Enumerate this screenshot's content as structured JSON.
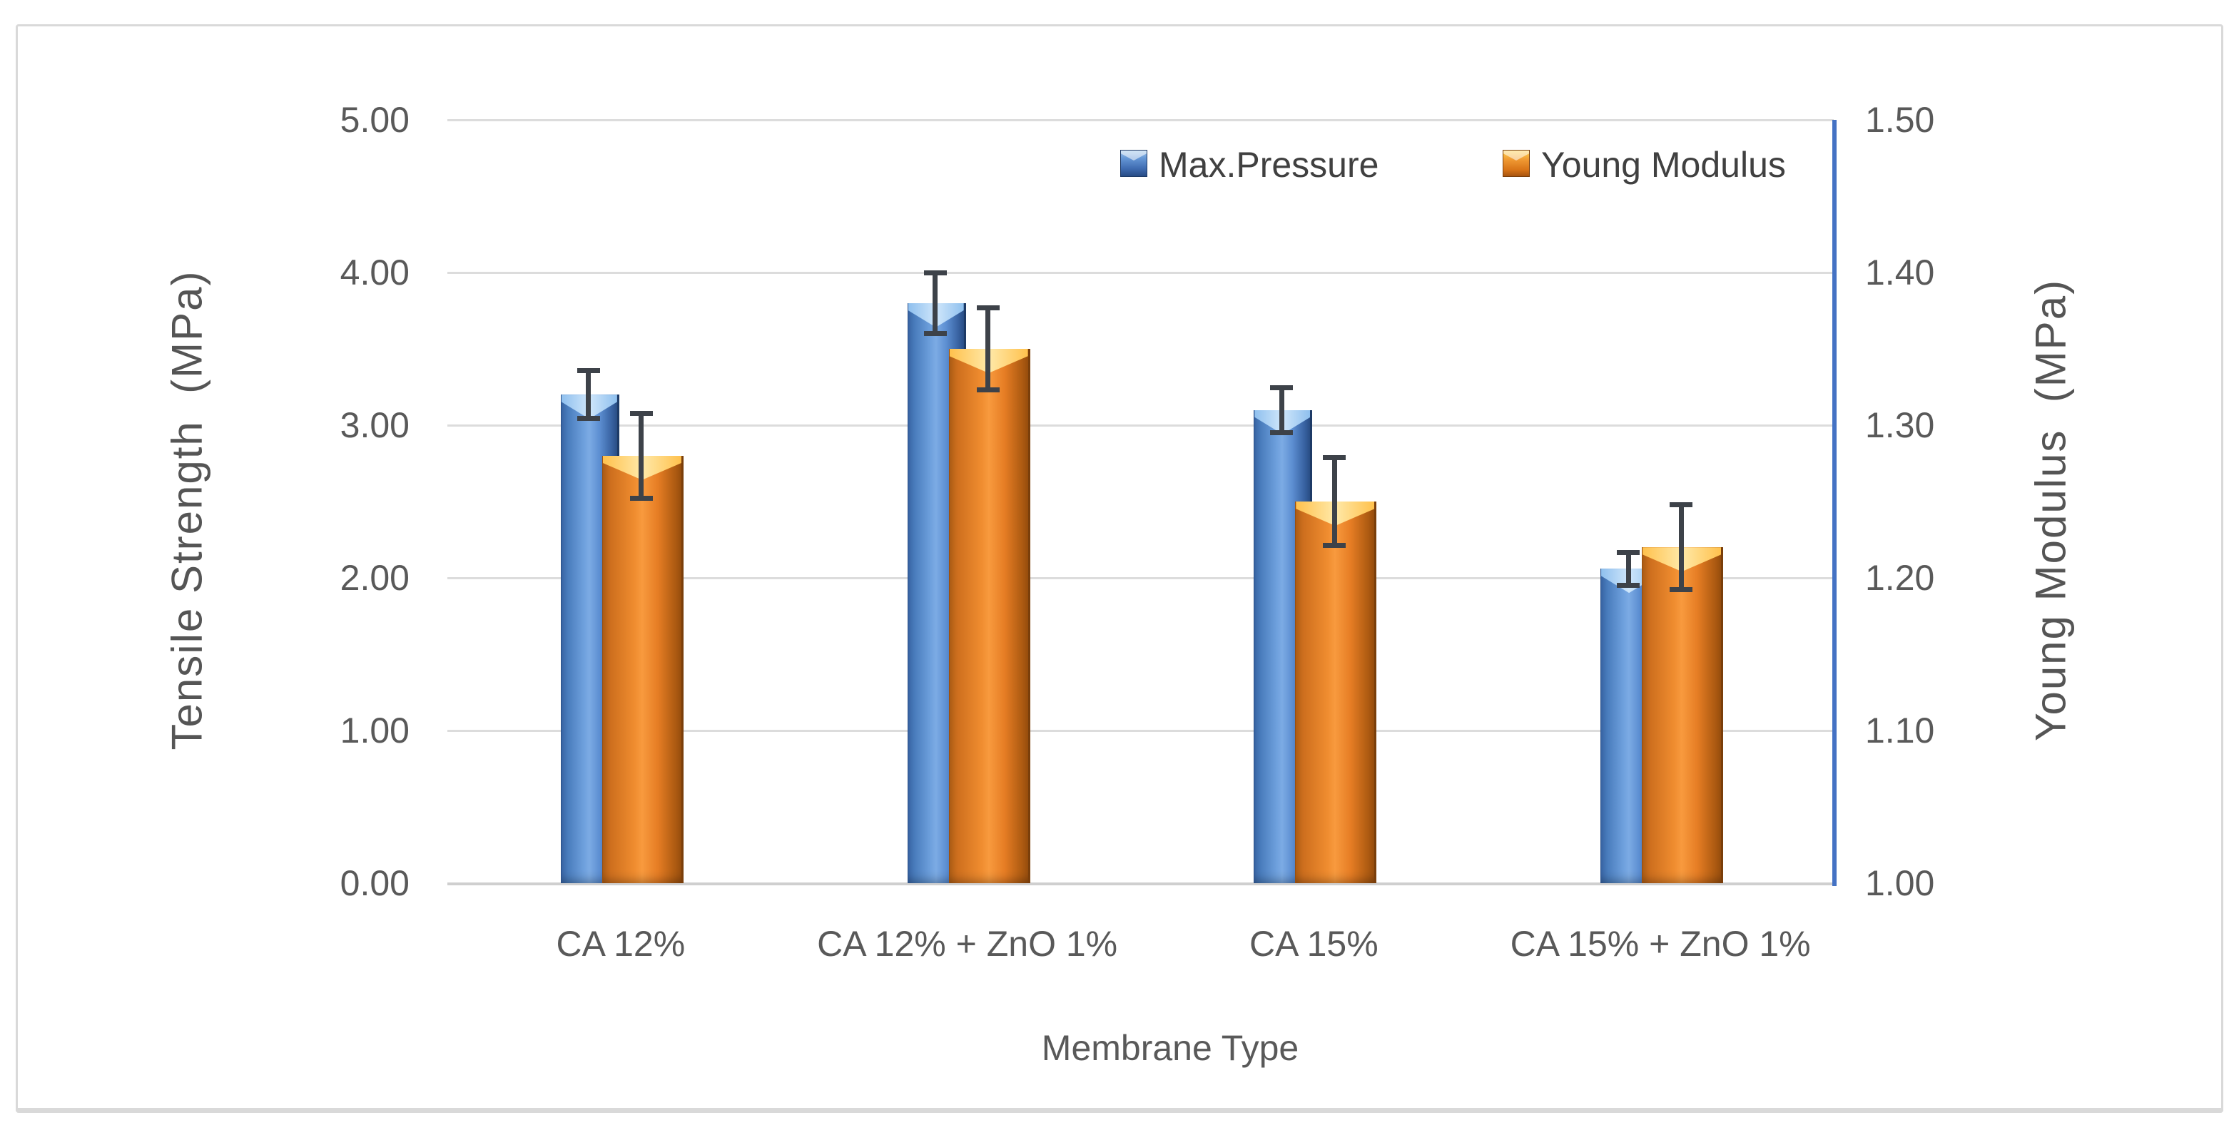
{
  "figure": {
    "border_color": "#D9D9D9",
    "background": "#FFFFFF"
  },
  "chart_data": {
    "type": "bar",
    "title": "",
    "categories": [
      "CA 12%",
      "CA 12% + ZnO 1%",
      "CA 15%",
      "CA 15% + ZnO 1%"
    ],
    "series": [
      {
        "name": "Max.Pressure",
        "axis": "left",
        "color": "#4472C4",
        "values": [
          3.2,
          3.8,
          3.1,
          2.06
        ],
        "error_bars": [
          0.16,
          0.2,
          0.15,
          0.11
        ]
      },
      {
        "name": "Young Modulus",
        "axis": "right",
        "color": "#ED7D31",
        "values": [
          1.28,
          1.35,
          1.25,
          1.22
        ],
        "error_bars": [
          0.028,
          0.027,
          0.029,
          0.028
        ]
      }
    ],
    "left_axis": {
      "title": "Tensile Strength  (MPa)",
      "min": 0,
      "max": 5,
      "ticks": [
        "5.00",
        "4.00",
        "3.00",
        "2.00",
        "1.00",
        "0.00"
      ]
    },
    "right_axis": {
      "title": "Young Modulus  (MPa)",
      "min": 1.0,
      "max": 1.5,
      "ticks": [
        "1.50",
        "1.40",
        "1.30",
        "1.20",
        "1.10",
        "1.00"
      ],
      "spine_color": "#4472C4"
    },
    "x_axis": {
      "title": "Membrane Type"
    },
    "legend": {
      "position": "top-right-inside",
      "items": [
        {
          "label": "Max.Pressure",
          "color": "#4472C4"
        },
        {
          "label": "Young Modulus",
          "color": "#ED7D31"
        }
      ]
    },
    "grid": true,
    "gridline_color": "#DCDCDC",
    "error_bar_color": "#3D4249",
    "tick_text_color": "#595959"
  }
}
